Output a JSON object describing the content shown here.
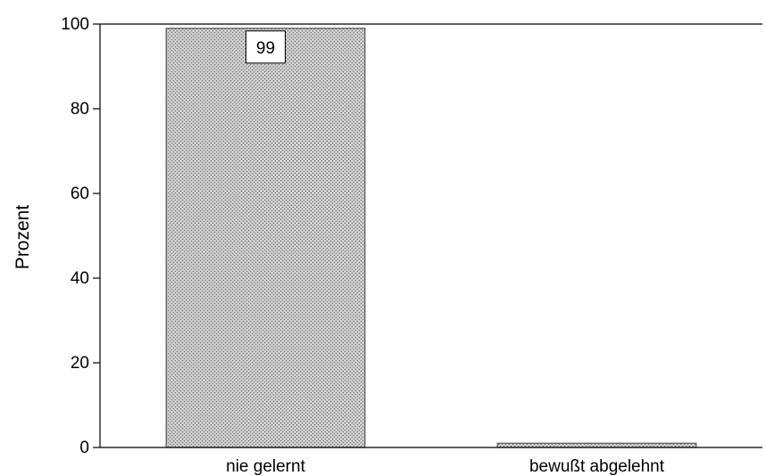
{
  "chart_data": {
    "type": "bar",
    "categories": [
      "nie gelernt",
      "bewußt abgelehnt"
    ],
    "values": [
      99,
      1
    ],
    "data_labels": [
      "99",
      ""
    ],
    "title": "",
    "xlabel": "",
    "ylabel": "Prozent",
    "ylim": [
      0,
      100
    ],
    "yticks": [
      0,
      20,
      40,
      60,
      80,
      100
    ],
    "grid": false,
    "legend": "none",
    "bar_fill": "#b8b8b8",
    "bar_stroke": "#555555"
  }
}
